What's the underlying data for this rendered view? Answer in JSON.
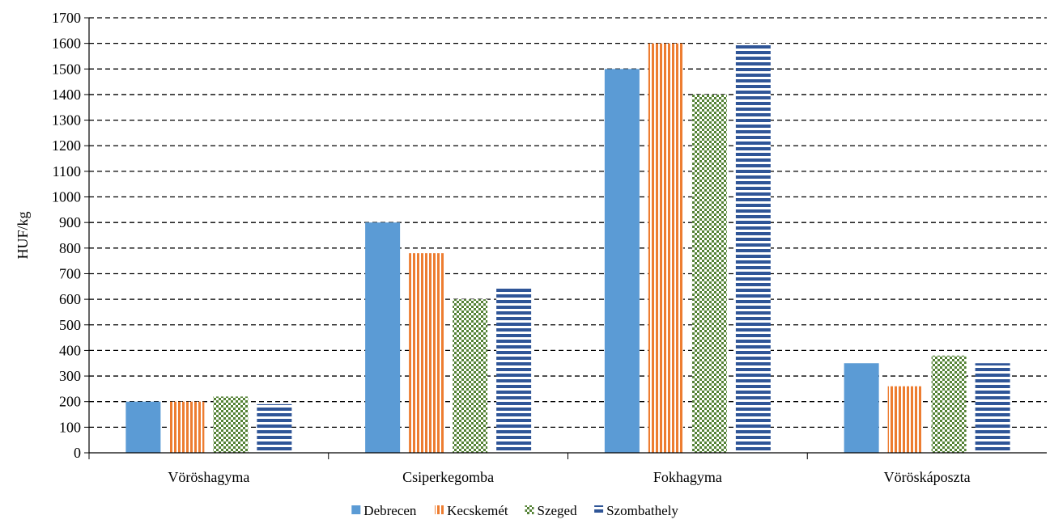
{
  "chart_data": {
    "type": "bar",
    "ylabel": "HUF/kg",
    "xlabel": "",
    "ylim": [
      0,
      1700
    ],
    "ytick_step": 100,
    "grid": true,
    "legend_placement": "bottom",
    "categories": [
      "Vöröshagyma",
      "Csiperkegomba",
      "Fokhagyma",
      "Vöröskáposzta"
    ],
    "series": [
      {
        "name": "Debrecen",
        "values": [
          200,
          900,
          1500,
          350
        ],
        "color": "#5B9BD5",
        "pattern": "solid"
      },
      {
        "name": "Kecskemét",
        "values": [
          200,
          780,
          1600,
          260
        ],
        "color": "#ED7D31",
        "pattern": "vertical-stripes"
      },
      {
        "name": "Szeged",
        "values": [
          220,
          600,
          1400,
          380
        ],
        "color": "#548235",
        "pattern": "checker"
      },
      {
        "name": "Szombathely",
        "values": [
          190,
          650,
          1600,
          350
        ],
        "color": "#2F5597",
        "pattern": "horizontal-stripes"
      }
    ]
  }
}
